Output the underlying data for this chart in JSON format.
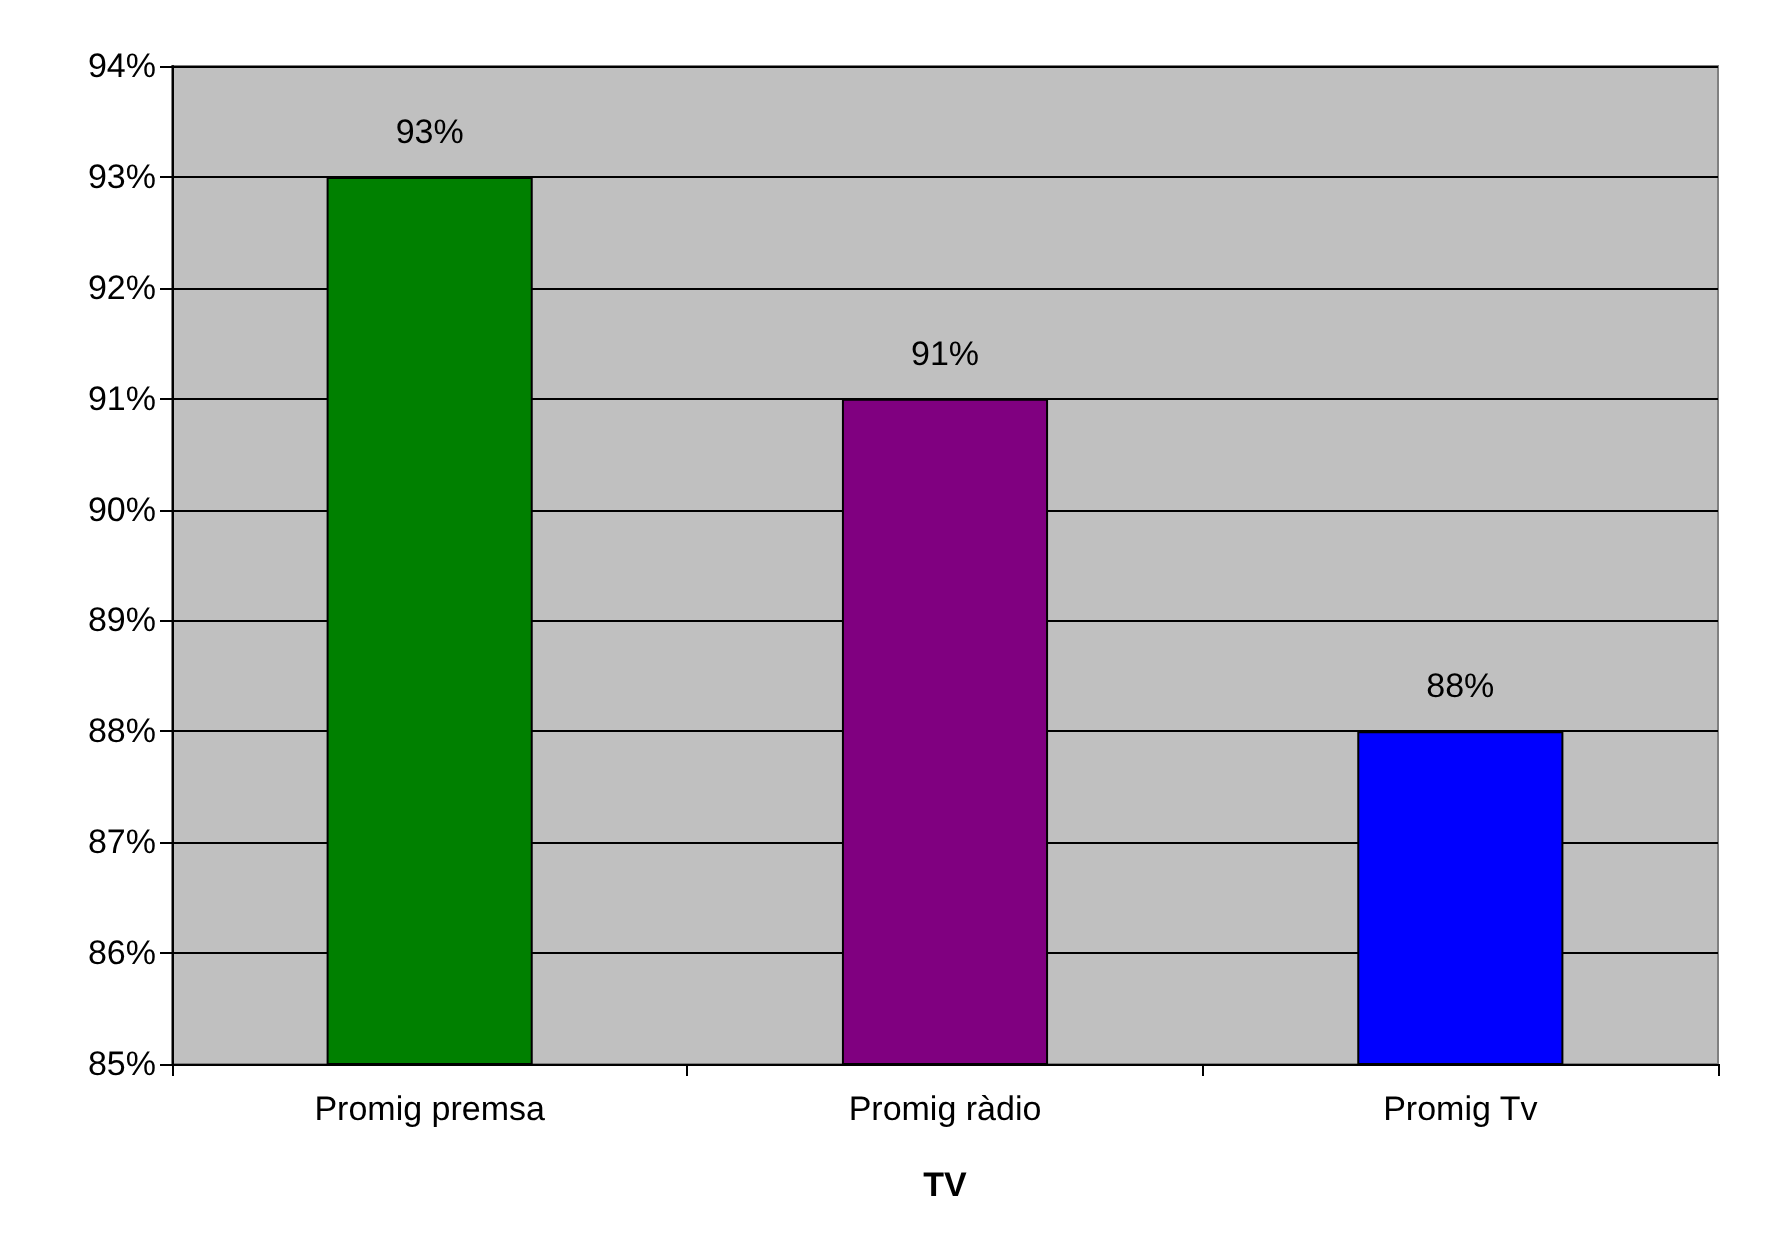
{
  "chart_data": {
    "type": "bar",
    "xlabel": "TV",
    "categories": [
      "Promig premsa",
      "Promig ràdio",
      "Promig Tv"
    ],
    "values": [
      93,
      91,
      88
    ],
    "colors": [
      "#008000",
      "#800080",
      "#0000ff"
    ],
    "value_labels": [
      "93%",
      "91%",
      "88%"
    ],
    "ylim": [
      85,
      94
    ],
    "yticks": [
      {
        "value": 85,
        "label": "85%"
      },
      {
        "value": 86,
        "label": "86%"
      },
      {
        "value": 87,
        "label": "87%"
      },
      {
        "value": 88,
        "label": "88%"
      },
      {
        "value": 89,
        "label": "89%"
      },
      {
        "value": 90,
        "label": "90%"
      },
      {
        "value": 91,
        "label": "91%"
      },
      {
        "value": 92,
        "label": "92%"
      },
      {
        "value": 93,
        "label": "93%"
      },
      {
        "value": 94,
        "label": "94%"
      }
    ],
    "grid": "y"
  }
}
